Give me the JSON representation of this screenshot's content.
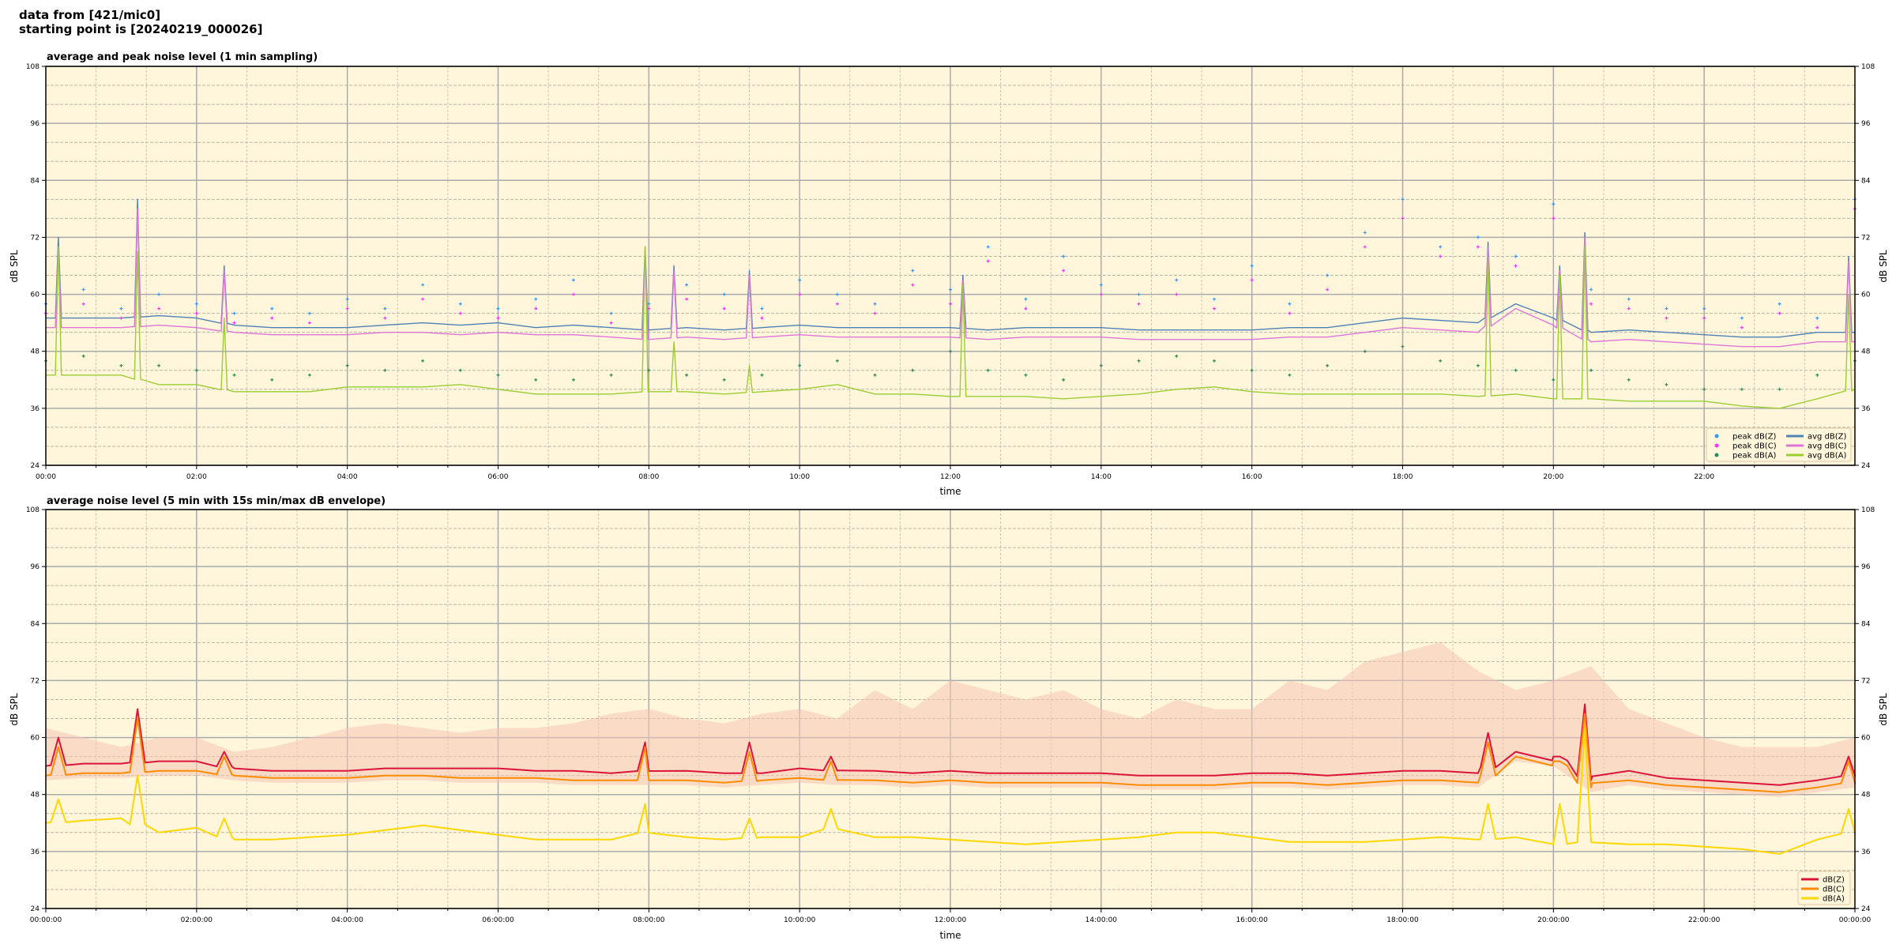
{
  "header": {
    "line1": "data from [421/mic0]",
    "line2": "starting point is [20240219_000026]"
  },
  "chart_data": [
    {
      "type": "line+scatter",
      "title": "average and peak noise level (1 min sampling)",
      "xlabel": "time",
      "ylabel": "dB SPL",
      "ylim": [
        24,
        108
      ],
      "yticks": [
        24,
        36,
        48,
        60,
        72,
        84,
        96,
        108
      ],
      "xlim_hours": [
        0,
        24
      ],
      "xtick_labels": [
        "00:00",
        "02:00",
        "04:00",
        "06:00",
        "08:00",
        "10:00",
        "12:00",
        "14:00",
        "16:00",
        "18:00",
        "20:00",
        "22:00"
      ],
      "grid": true,
      "legend_position": "lower-right",
      "x": [
        "00:00",
        "00:30",
        "01:00",
        "01:30",
        "02:00",
        "02:30",
        "03:00",
        "03:30",
        "04:00",
        "04:30",
        "05:00",
        "05:30",
        "06:00",
        "06:30",
        "07:00",
        "07:30",
        "08:00",
        "08:30",
        "09:00",
        "09:30",
        "10:00",
        "10:30",
        "11:00",
        "11:30",
        "12:00",
        "12:30",
        "13:00",
        "13:30",
        "14:00",
        "14:30",
        "15:00",
        "15:30",
        "16:00",
        "16:30",
        "17:00",
        "17:30",
        "18:00",
        "18:30",
        "19:00",
        "19:30",
        "20:00",
        "20:30",
        "21:00",
        "21:30",
        "22:00",
        "22:30",
        "23:00",
        "23:30",
        "24:00"
      ],
      "series": [
        {
          "name": "avg dB(Z)",
          "kind": "line",
          "color": "#4f81b5",
          "values": [
            55,
            55,
            55,
            55.5,
            55,
            53.5,
            53,
            53,
            53,
            53.5,
            54,
            53.5,
            54,
            53,
            53.5,
            53,
            52.5,
            53,
            52.5,
            53,
            53.5,
            53,
            53,
            53,
            53,
            52.5,
            53,
            53,
            53,
            52.5,
            52.5,
            52.5,
            52.5,
            53,
            53,
            54,
            55,
            54.5,
            54,
            58,
            55,
            52,
            52.5,
            52,
            51.5,
            51,
            51,
            52,
            52
          ]
        },
        {
          "name": "avg dB(C)",
          "kind": "line",
          "color": "#de75d8",
          "values": [
            53,
            53,
            53,
            53.5,
            53,
            52,
            51.5,
            51.5,
            51.5,
            52,
            52,
            51.5,
            52,
            51.5,
            51.5,
            51,
            50.5,
            51,
            50.5,
            51,
            51.5,
            51,
            51,
            51,
            51,
            50.5,
            51,
            51,
            51,
            50.5,
            50.5,
            50.5,
            50.5,
            51,
            51,
            52,
            53,
            52.5,
            52,
            57,
            53.5,
            50,
            50.5,
            50,
            49.5,
            49,
            49,
            50,
            50
          ]
        },
        {
          "name": "avg dB(A)",
          "kind": "line",
          "color": "#9acd32",
          "values": [
            43,
            43,
            43,
            41,
            41,
            39.5,
            39.5,
            39.5,
            40.5,
            40.5,
            40.5,
            41,
            40,
            39,
            39,
            39,
            39.5,
            39.5,
            39,
            39.5,
            40,
            41,
            39,
            39,
            38.5,
            38.5,
            38.5,
            38,
            38.5,
            39,
            40,
            40.5,
            39.5,
            39,
            39,
            39,
            39,
            39,
            38.5,
            39,
            38,
            38,
            37.5,
            37.5,
            37.5,
            36.5,
            36,
            38,
            40
          ]
        },
        {
          "name": "peak dB(Z)",
          "kind": "scatter",
          "color": "#3399ff",
          "values": [
            58,
            61,
            57,
            60,
            58,
            56,
            57,
            56,
            59,
            57,
            62,
            58,
            57,
            59,
            63,
            56,
            58,
            62,
            60,
            57,
            63,
            60,
            58,
            65,
            61,
            70,
            59,
            68,
            62,
            60,
            63,
            59,
            66,
            58,
            64,
            73,
            80,
            70,
            72,
            68,
            79,
            61,
            59,
            57,
            57,
            55,
            58,
            55,
            80
          ]
        },
        {
          "name": "peak dB(C)",
          "kind": "scatter",
          "color": "#ff33ff",
          "values": [
            56,
            58,
            55,
            57,
            56,
            54,
            55,
            54,
            57,
            55,
            59,
            56,
            55,
            57,
            60,
            54,
            57,
            59,
            57,
            55,
            60,
            58,
            56,
            62,
            58,
            67,
            57,
            65,
            60,
            58,
            60,
            57,
            63,
            56,
            61,
            70,
            76,
            68,
            70,
            66,
            76,
            58,
            57,
            55,
            55,
            53,
            56,
            53,
            78
          ]
        },
        {
          "name": "peak dB(A)",
          "kind": "scatter",
          "color": "#2e8b57",
          "values": [
            46,
            47,
            45,
            45,
            44,
            43,
            42,
            43,
            45,
            44,
            46,
            44,
            43,
            42,
            42,
            43,
            44,
            43,
            42,
            43,
            45,
            46,
            43,
            44,
            48,
            44,
            43,
            42,
            45,
            46,
            47,
            46,
            44,
            43,
            45,
            48,
            49,
            46,
            45,
            44,
            42,
            44,
            42,
            41,
            40,
            40,
            40,
            43,
            46
          ]
        }
      ],
      "spikes": [
        {
          "time": "00:10",
          "avg_z": 72,
          "avg_c": 70,
          "avg_a": 70
        },
        {
          "time": "01:13",
          "avg_z": 80,
          "avg_c": 78,
          "avg_a": 69
        },
        {
          "time": "02:22",
          "avg_z": 66,
          "avg_c": 65,
          "avg_a": 55
        },
        {
          "time": "07:57",
          "avg_z": 70,
          "avg_c": 69,
          "avg_a": 70
        },
        {
          "time": "08:20",
          "avg_z": 66,
          "avg_c": 65,
          "avg_a": 50
        },
        {
          "time": "09:20",
          "avg_z": 65,
          "avg_c": 64,
          "avg_a": 45
        },
        {
          "time": "12:10",
          "avg_z": 64,
          "avg_c": 63,
          "avg_a": 62
        },
        {
          "time": "19:08",
          "avg_z": 71,
          "avg_c": 70,
          "avg_a": 68
        },
        {
          "time": "20:05",
          "avg_z": 66,
          "avg_c": 65,
          "avg_a": 64
        },
        {
          "time": "20:25",
          "avg_z": 73,
          "avg_c": 72,
          "avg_a": 70
        },
        {
          "time": "23:55",
          "avg_z": 68,
          "avg_c": 67,
          "avg_a": 60
        }
      ]
    },
    {
      "type": "line+area",
      "title": "average noise level (5 min with 15s min/max dB envelope)",
      "xlabel": "time",
      "ylabel": "dB SPL",
      "ylim": [
        24,
        108
      ],
      "yticks": [
        24,
        36,
        48,
        60,
        72,
        84,
        96,
        108
      ],
      "xlim_hours": [
        0,
        24
      ],
      "xtick_labels": [
        "00:00:00",
        "02:00:00",
        "04:00:00",
        "06:00:00",
        "08:00:00",
        "10:00:00",
        "12:00:00",
        "14:00:00",
        "16:00:00",
        "18:00:00",
        "20:00:00",
        "22:00:00",
        "00:00:00"
      ],
      "grid": true,
      "legend_position": "lower-right",
      "x": [
        "00:00",
        "00:30",
        "01:00",
        "01:30",
        "02:00",
        "02:30",
        "03:00",
        "03:30",
        "04:00",
        "04:30",
        "05:00",
        "05:30",
        "06:00",
        "06:30",
        "07:00",
        "07:30",
        "08:00",
        "08:30",
        "09:00",
        "09:30",
        "10:00",
        "10:30",
        "11:00",
        "11:30",
        "12:00",
        "12:30",
        "13:00",
        "13:30",
        "14:00",
        "14:30",
        "15:00",
        "15:30",
        "16:00",
        "16:30",
        "17:00",
        "17:30",
        "18:00",
        "18:30",
        "19:00",
        "19:30",
        "20:00",
        "20:30",
        "21:00",
        "21:30",
        "22:00",
        "22:30",
        "23:00",
        "23:30",
        "24:00"
      ],
      "series": [
        {
          "name": "dB(Z)",
          "kind": "line",
          "color": "#dc143c",
          "values": [
            54,
            54.5,
            54.5,
            55,
            55,
            53.5,
            53,
            53,
            53,
            53.5,
            53.5,
            53.5,
            53.5,
            53,
            53,
            52.5,
            53,
            53,
            52.5,
            52.5,
            53.5,
            53,
            53,
            52.5,
            53,
            52.5,
            52.5,
            52.5,
            52.5,
            52,
            52,
            52,
            52.5,
            52.5,
            52,
            52.5,
            53,
            53,
            52.5,
            57,
            56,
            51,
            53,
            51.5,
            51,
            50.5,
            50,
            51,
            52
          ]
        },
        {
          "name": "dB(C)",
          "kind": "line",
          "color": "#ff8c00",
          "values": [
            52,
            52.5,
            52.5,
            53,
            53,
            52,
            51.5,
            51.5,
            51.5,
            52,
            52,
            51.5,
            51.5,
            51.5,
            51,
            51,
            51,
            51,
            50.5,
            51,
            51.5,
            51,
            51,
            50.5,
            51,
            50.5,
            50.5,
            50.5,
            50.5,
            50,
            50,
            50,
            50.5,
            50.5,
            50,
            50.5,
            51,
            51,
            50.5,
            56,
            55,
            49.5,
            51,
            50,
            49.5,
            49,
            48.5,
            49.5,
            50.5
          ]
        },
        {
          "name": "dB(A)",
          "kind": "line",
          "color": "#ffd700",
          "values": [
            42,
            42.5,
            43,
            40,
            41,
            38.5,
            38.5,
            39,
            39.5,
            40.5,
            41.5,
            40.5,
            39.5,
            38.5,
            38.5,
            38.5,
            40,
            39,
            38.5,
            39,
            39,
            41,
            39,
            39,
            38.5,
            38,
            37.5,
            38,
            38.5,
            39,
            40,
            40,
            39,
            38,
            38,
            38,
            38.5,
            39,
            38.5,
            39,
            37.5,
            38,
            37.5,
            37.5,
            37,
            36.5,
            35.5,
            38.5,
            40
          ]
        },
        {
          "name": "max dB envelope",
          "kind": "area",
          "color": "#f4c4b4",
          "values": [
            62,
            60,
            58,
            60,
            60,
            57,
            58,
            60,
            62,
            63,
            62,
            61,
            62,
            62,
            63,
            65,
            66,
            64,
            63,
            65,
            66,
            64,
            70,
            66,
            72,
            70,
            68,
            70,
            66,
            64,
            68,
            66,
            66,
            72,
            70,
            76,
            78,
            80,
            74,
            70,
            72,
            75,
            66,
            63,
            60,
            58,
            58,
            58,
            60
          ]
        }
      ],
      "spikes": [
        {
          "time": "00:10",
          "z": 60,
          "c": 58,
          "a": 47
        },
        {
          "time": "01:13",
          "z": 66,
          "c": 64,
          "a": 52
        },
        {
          "time": "02:22",
          "z": 57,
          "c": 56,
          "a": 43
        },
        {
          "time": "07:57",
          "z": 59,
          "c": 58,
          "a": 46
        },
        {
          "time": "09:20",
          "z": 59,
          "c": 57,
          "a": 43
        },
        {
          "time": "10:25",
          "z": 56,
          "c": 55,
          "a": 45
        },
        {
          "time": "19:08",
          "z": 61,
          "c": 59,
          "a": 46
        },
        {
          "time": "20:05",
          "z": 56,
          "c": 55,
          "a": 46
        },
        {
          "time": "20:25",
          "z": 67,
          "c": 65,
          "a": 62
        },
        {
          "time": "23:55",
          "z": 56,
          "c": 55,
          "a": 45
        }
      ]
    }
  ]
}
